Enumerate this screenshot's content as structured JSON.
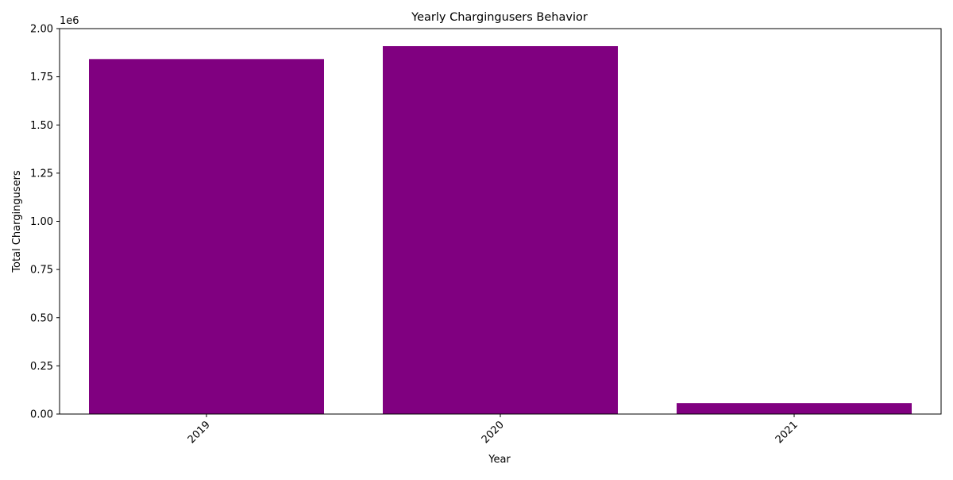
{
  "chart_data": {
    "type": "bar",
    "title": "Yearly Chargingusers Behavior",
    "xlabel": "Year",
    "ylabel": "Total Chargingusers",
    "categories": [
      "2019",
      "2020",
      "2021"
    ],
    "values": [
      1842000,
      1909000,
      57000
    ],
    "ylim": [
      0,
      2000000
    ],
    "yticks": [
      0,
      250000,
      500000,
      750000,
      1000000,
      1250000,
      1500000,
      1750000,
      2000000
    ],
    "ytick_labels": [
      "0.00",
      "0.25",
      "0.50",
      "0.75",
      "1.00",
      "1.25",
      "1.50",
      "1.75",
      "2.00"
    ],
    "offset_label": "1e6",
    "bar_color": "#800080",
    "xtick_rotation": 45,
    "grid": false,
    "legend": false
  }
}
